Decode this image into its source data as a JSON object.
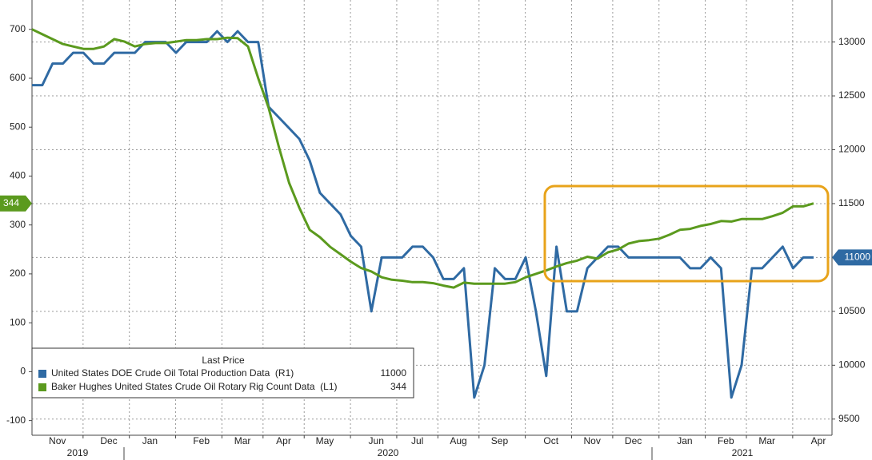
{
  "chart_data": {
    "type": "line",
    "categories": [
      null,
      null,
      "Nov",
      null,
      null,
      null,
      null,
      "Dec",
      null,
      null,
      null,
      "Jan",
      null,
      null,
      null,
      null,
      "Feb",
      null,
      null,
      null,
      "Mar",
      null,
      null,
      null,
      "Apr",
      null,
      null,
      null,
      "May",
      null,
      null,
      null,
      null,
      "Jun",
      null,
      null,
      null,
      "Jul",
      null,
      null,
      null,
      "Aug",
      null,
      null,
      null,
      "Sep",
      null,
      null,
      null,
      null,
      "Oct",
      null,
      null,
      null,
      "Nov",
      null,
      null,
      null,
      "Dec",
      null,
      null,
      null,
      null,
      "Jan",
      null,
      null,
      null,
      "Feb",
      null,
      null,
      null,
      "Mar",
      null,
      null,
      null,
      null,
      "Apr"
    ],
    "year_labels": [
      "2019",
      "2020",
      "2021"
    ],
    "legend_title": "Last Price",
    "series": [
      {
        "name": "United States DOE Crude Oil Total Production Data  (R1)",
        "color": "#2f6aa3",
        "axis": "y2",
        "values": [
          12600,
          12600,
          12800,
          12800,
          12900,
          12900,
          12800,
          12800,
          12900,
          12900,
          12900,
          13000,
          13000,
          13000,
          12900,
          13000,
          13000,
          13000,
          13100,
          13000,
          13100,
          13000,
          13000,
          12400,
          12300,
          12200,
          12100,
          11900,
          11600,
          11500,
          11400,
          11200,
          11100,
          10500,
          11000,
          11000,
          11000,
          11100,
          11100,
          11000,
          10800,
          10800,
          10900,
          9700,
          10000,
          10900,
          10800,
          10800,
          11000,
          10500,
          9900,
          11100,
          10500,
          10500,
          10900,
          11000,
          11100,
          11100,
          11000,
          11000,
          11000,
          11000,
          11000,
          11000,
          10900,
          10900,
          11000,
          10900,
          9700,
          10000,
          10900,
          10900,
          11000,
          11100,
          10900,
          11000,
          11000
        ]
      },
      {
        "name": "Baker Hughes United States Crude Oil Rotary Rig Count Data  (L1)",
        "color": "#5b9a1e",
        "axis": "y",
        "values": [
          700,
          690,
          680,
          670,
          665,
          660,
          660,
          665,
          680,
          675,
          665,
          670,
          672,
          672,
          675,
          678,
          678,
          680,
          680,
          683,
          682,
          665,
          600,
          540,
          460,
          386,
          335,
          290,
          275,
          255,
          240,
          225,
          212,
          205,
          193,
          188,
          186,
          183,
          183,
          181,
          176,
          172,
          182,
          180,
          180,
          180,
          180,
          183,
          193,
          200,
          207,
          215,
          222,
          227,
          235,
          231,
          244,
          250,
          262,
          267,
          269,
          272,
          280,
          290,
          292,
          298,
          302,
          308,
          307,
          312,
          312,
          312,
          318,
          325,
          338,
          338,
          344
        ]
      }
    ],
    "ylim": [
      -130,
      760
    ],
    "yticks": [
      -100,
      0,
      100,
      200,
      300,
      400,
      500,
      600,
      700
    ],
    "y2lim": [
      9350,
      13390
    ],
    "y2ticks": [
      9500,
      10000,
      10500,
      11000,
      11500,
      12000,
      12500,
      13000
    ],
    "grid": true
  }
}
